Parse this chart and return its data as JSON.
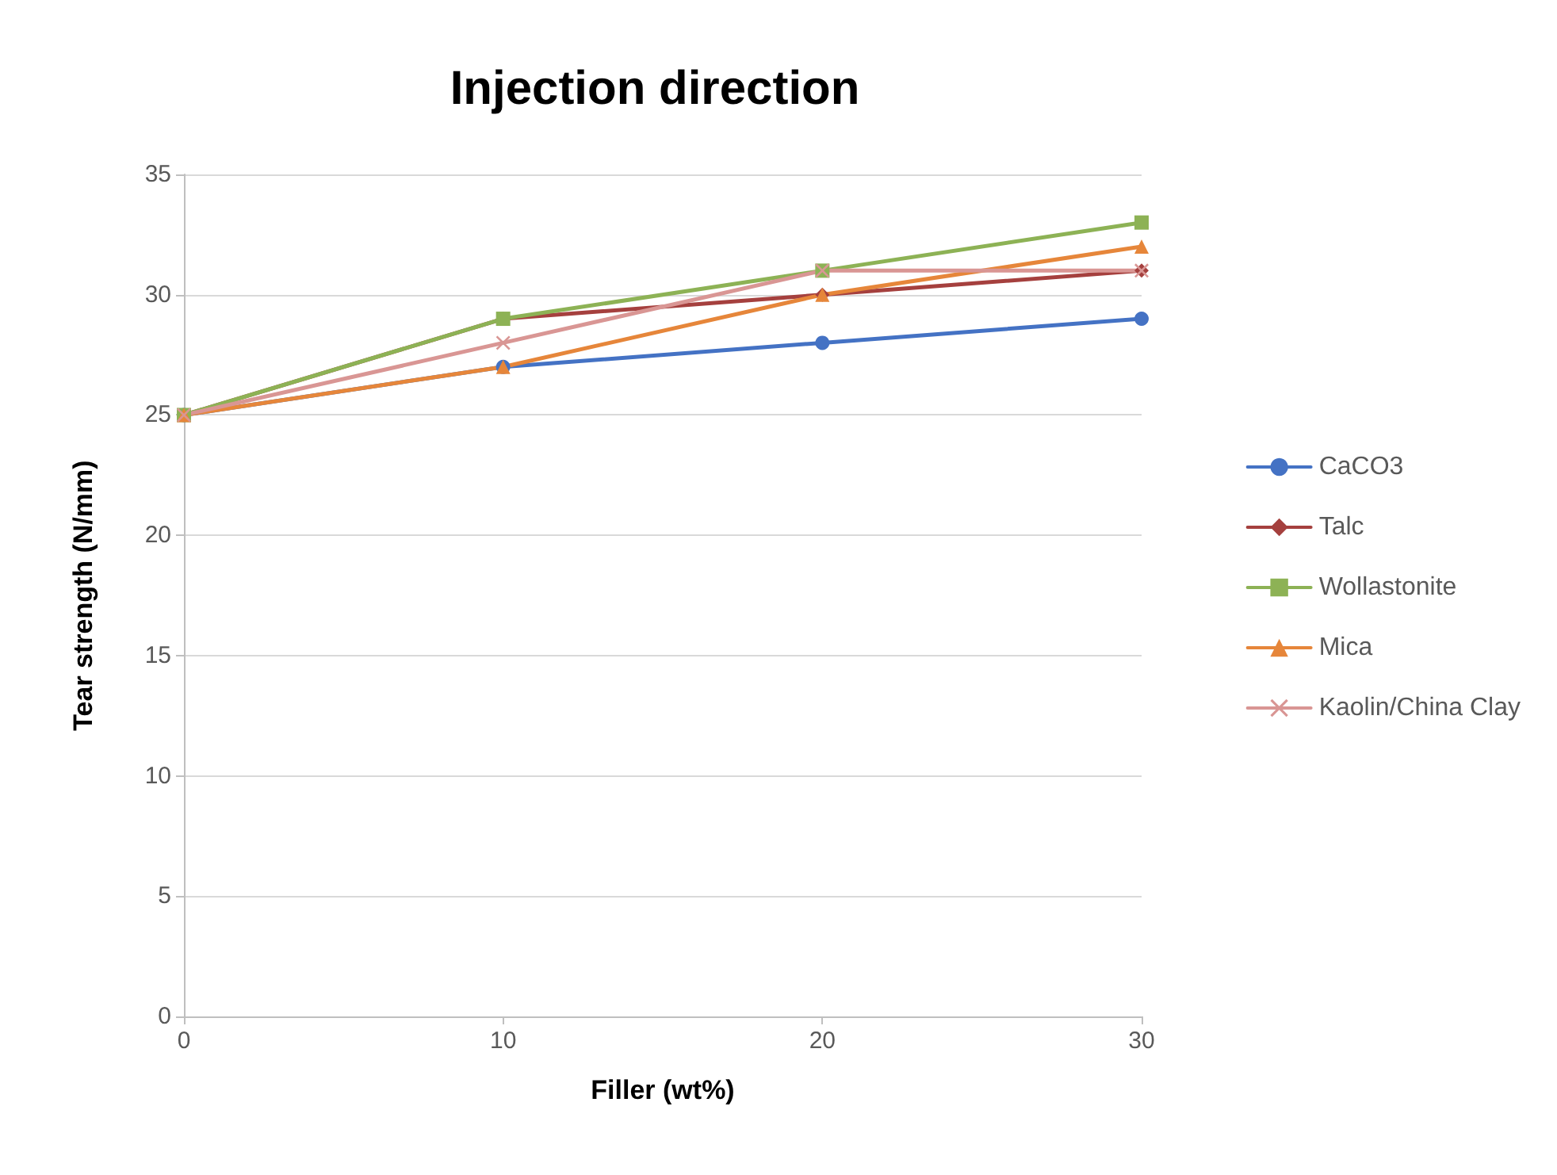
{
  "chart_data": {
    "type": "line",
    "title": "Injection direction",
    "xlabel": "Filler (wt%)",
    "ylabel": "Tear strength (N/mm)",
    "x": [
      0,
      10,
      20,
      30
    ],
    "series": [
      {
        "name": "CaCO3",
        "color": "#4472c4",
        "marker": "circle",
        "values": [
          25,
          27,
          28,
          29
        ]
      },
      {
        "name": "Talc",
        "color": "#a5403e",
        "marker": "diamond",
        "values": [
          25,
          29,
          30,
          31
        ]
      },
      {
        "name": "Wollastonite",
        "color": "#8db255",
        "marker": "square",
        "values": [
          25,
          29,
          31,
          33
        ]
      },
      {
        "name": "Mica",
        "color": "#e6863a",
        "marker": "triangle",
        "values": [
          25,
          27,
          30,
          32
        ]
      },
      {
        "name": "Kaolin/China Clay",
        "color": "#d99694",
        "marker": "cross",
        "values": [
          25,
          28,
          31,
          31
        ]
      }
    ],
    "xlim": [
      0,
      30
    ],
    "xticks": [
      0,
      10,
      20,
      30
    ],
    "ylim": [
      0,
      35
    ],
    "yticks": [
      0,
      5,
      10,
      15,
      20,
      25,
      30,
      35
    ],
    "grid": "y",
    "legend": "right",
    "line_style": "solid"
  }
}
